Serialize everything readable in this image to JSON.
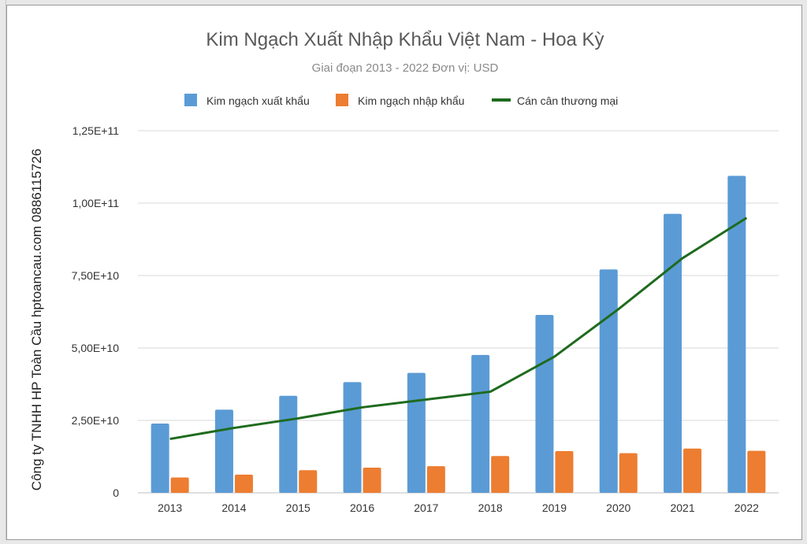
{
  "chart_data": {
    "type": "bar",
    "title": "Kim Ngạch Xuất Nhập Khẩu Việt Nam - Hoa Kỳ",
    "subtitle": "Giai đoạn 2013 - 2022 Đơn vị: USD",
    "ylabel": "Công ty TNHH HP Toàn Cầu hptoancau.com 0886115726",
    "xlabel": "",
    "ylim": [
      0,
      125000000000
    ],
    "yticks": [
      0,
      25000000000,
      50000000000,
      75000000000,
      100000000000,
      125000000000
    ],
    "ytick_labels": [
      "0",
      "2,50E+10",
      "5,00E+10",
      "7,50E+10",
      "1,00E+11",
      "1,25E+11"
    ],
    "categories": [
      "2013",
      "2014",
      "2015",
      "2016",
      "2017",
      "2018",
      "2019",
      "2020",
      "2021",
      "2022"
    ],
    "grid": true,
    "legend_position": "top",
    "series": [
      {
        "name": "Kim ngạch xuất khẩu",
        "kind": "bar",
        "color": "#5b9bd5",
        "values": [
          23900000000,
          28700000000,
          33500000000,
          38200000000,
          41400000000,
          47600000000,
          61400000000,
          77100000000,
          96300000000,
          109400000000
        ]
      },
      {
        "name": "Kim ngạch nhập khẩu",
        "kind": "bar",
        "color": "#ed7d31",
        "values": [
          5300000000,
          6300000000,
          7800000000,
          8700000000,
          9200000000,
          12700000000,
          14400000000,
          13700000000,
          15300000000,
          14500000000
        ]
      },
      {
        "name": "Cán cân thương mại",
        "kind": "line",
        "color": "#1e6b1e",
        "values": [
          18600000000,
          22400000000,
          25700000000,
          29500000000,
          32200000000,
          34900000000,
          47000000000,
          63400000000,
          81000000000,
          94900000000
        ]
      }
    ]
  }
}
